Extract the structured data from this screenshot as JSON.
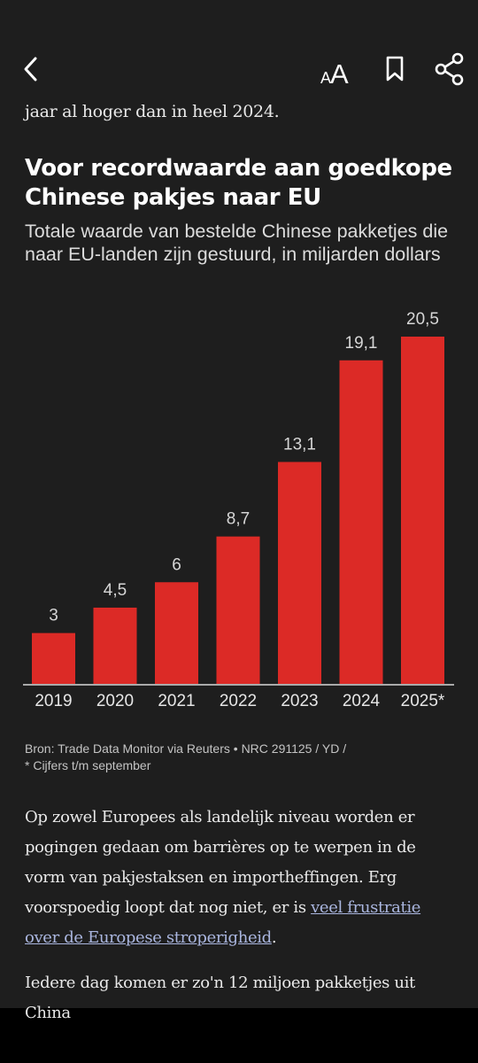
{
  "header": {
    "back_icon": "chevron-left-icon",
    "text_size_icon": "text-size-icon",
    "text_size_glyph": "AA",
    "bookmark_icon": "bookmark-icon",
    "share_icon": "share-icon"
  },
  "article": {
    "intro_line": "jaar al hoger dan in heel 2024.",
    "paragraph1": {
      "before_link": "Op zowel Europees als landelijk niveau worden er pogingen gedaan om barrières op te werpen in de vorm van pakjestaksen en importheffingen. Erg voorspoedig loopt dat nog niet, er is ",
      "link": "veel frustratie over de Europese stroperigheid",
      "after_link": "."
    },
    "paragraph2": "Iedere dag komen er zo'n 12 miljoen pakketjes uit China"
  },
  "chart_data": {
    "type": "bar",
    "title": "Voor recordwaarde aan goedkope Chinese pakjes naar EU",
    "subtitle": "Totale waarde van bestelde Chinese pakketjes die naar EU-landen zijn gestuurd, in miljarden dollars",
    "categories": [
      "2019",
      "2020",
      "2021",
      "2022",
      "2023",
      "2024",
      "2025*"
    ],
    "values": [
      3,
      4.5,
      6,
      8.7,
      13.1,
      19.1,
      20.5
    ],
    "value_labels": [
      "3",
      "4,5",
      "6",
      "8,7",
      "13,1",
      "19,1",
      "20,5"
    ],
    "xlabel": "",
    "ylabel": "",
    "ylim": [
      0,
      20.5
    ],
    "grid": false,
    "bar_color": "#dc2a26",
    "source_line1": "Bron: Trade Data Monitor via Reuters • NRC 291125 / YD /",
    "source_line2": "* Cijfers t/m september"
  },
  "colors": {
    "background": "#1e1e1e",
    "bar": "#dc2a26",
    "link": "#aab6df"
  }
}
